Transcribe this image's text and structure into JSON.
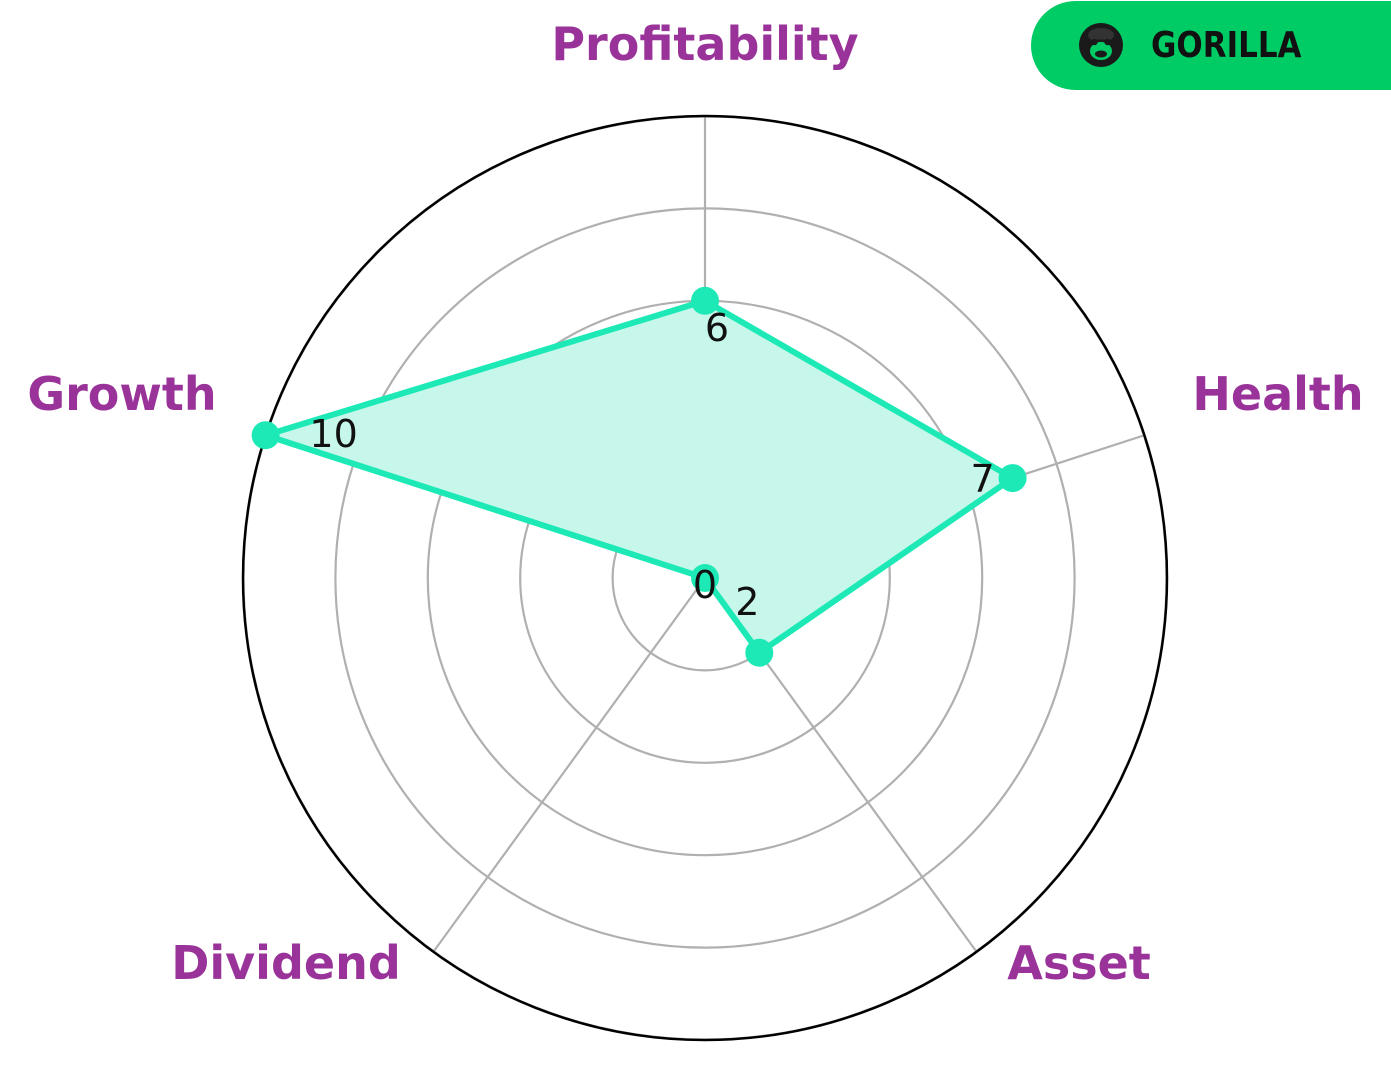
{
  "brand": {
    "name": "GORILLA",
    "background_color": "#00cc66",
    "logo_icon": "gorilla-head-icon"
  },
  "chart_data": {
    "type": "radar",
    "axes": [
      "Profitability",
      "Health",
      "Asset",
      "Dividend",
      "Growth"
    ],
    "values": [
      6,
      7,
      2,
      0,
      10
    ],
    "value_labels": [
      "6",
      "7",
      "2",
      "0",
      "10"
    ],
    "rlim": [
      0,
      10
    ],
    "ring_levels": [
      2,
      4,
      6,
      8,
      10
    ],
    "grid": true,
    "colors": {
      "series_line": "#1de9b6",
      "series_fill": "#c6f7ea",
      "axis_label": "#993399",
      "grid": "#b0b0b0",
      "outer_ring": "#000000"
    }
  }
}
